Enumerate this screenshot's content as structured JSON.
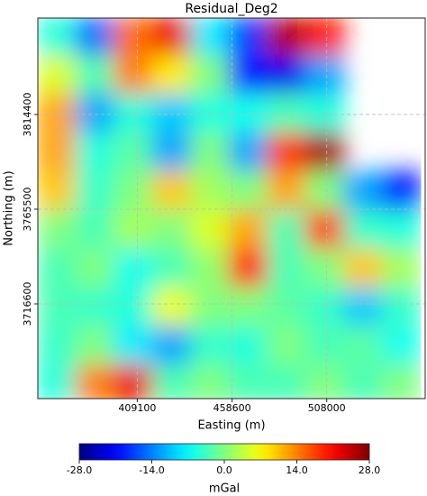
{
  "chart_data": {
    "type": "heatmap",
    "title": "Residual_Deg2",
    "x_label": "Easting (m)",
    "y_label": "Northing (m)",
    "xlim": [
      357200,
      559400
    ],
    "ylim": [
      3667700,
      3864200
    ],
    "xticks": [
      409100,
      458600,
      508000
    ],
    "yticks": [
      3716600,
      3765500,
      3814400
    ],
    "grid": true,
    "colormap": "jet",
    "x": [
      367000,
      387000,
      407000,
      427000,
      447000,
      467000,
      487000,
      507000,
      527000,
      547000
    ],
    "y": [
      3855000,
      3835000,
      3815000,
      3795000,
      3775000,
      3755000,
      3735000,
      3715000,
      3695000,
      3675000
    ],
    "z": [
      [
        -5,
        -15,
        15,
        22,
        -8,
        -18,
        25,
        20,
        null,
        null
      ],
      [
        5,
        -3,
        14,
        8,
        0,
        -20,
        -22,
        -12,
        null,
        null
      ],
      [
        12,
        -12,
        -5,
        -10,
        -5,
        -6,
        -3,
        -5,
        null,
        null
      ],
      [
        12,
        -5,
        -2,
        -12,
        0,
        -12,
        18,
        26,
        null,
        null
      ],
      [
        10,
        -4,
        0,
        10,
        2,
        0,
        12,
        0,
        -12,
        -20
      ],
      [
        0,
        -3,
        2,
        0,
        5,
        12,
        -3,
        18,
        -4,
        -5
      ],
      [
        -3,
        0,
        -6,
        -3,
        1,
        20,
        -3,
        0,
        10,
        2
      ],
      [
        -3,
        -4,
        -5,
        6,
        0,
        0,
        -2,
        -4,
        -10,
        -4
      ],
      [
        -4,
        0,
        -8,
        -12,
        -4,
        -5,
        0,
        -3,
        -2,
        -6
      ],
      [
        -5,
        14,
        22,
        -3,
        0,
        -3,
        -3,
        0,
        -3,
        0
      ]
    ],
    "colorbar_label": "mGal",
    "clim": [
      -28,
      28
    ],
    "colorbar_ticks": [
      {
        "value": -28,
        "label": "-28.0"
      },
      {
        "value": -14,
        "label": "-14.0"
      },
      {
        "value": 0,
        "label": "0.0"
      },
      {
        "value": 14,
        "label": "14.0"
      },
      {
        "value": 28,
        "label": "28.0"
      }
    ]
  }
}
